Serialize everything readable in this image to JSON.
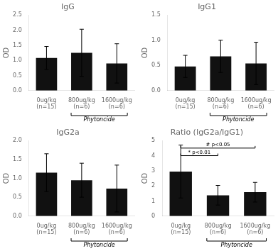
{
  "chart_data": [
    {
      "type": "bar",
      "title": "IgG",
      "ylabel": "OD",
      "categories": [
        "0ug/kg (n=15)",
        "800ug/kg (n=6)",
        "1600ug/kg (n=6)"
      ],
      "values": [
        1.08,
        1.25,
        0.9
      ],
      "errors": [
        0.38,
        0.78,
        0.65
      ],
      "color": "#111111",
      "ylim": [
        0,
        2.5
      ],
      "yticks": [
        {
          "value": 0,
          "label": "0.0"
        },
        {
          "value": 0.5,
          "label": "0.5"
        },
        {
          "value": 1,
          "label": "1.0"
        },
        {
          "value": 1.5,
          "label": "1.5"
        },
        {
          "value": 2,
          "label": "2.0"
        },
        {
          "value": 2.5,
          "label": "2.5"
        }
      ],
      "grid": false,
      "annotations": [
        {
          "text": "Phytoncide",
          "from": "800ug/kg (n=6)",
          "to": "1600ug/kg (n=6)",
          "side": "bottom"
        }
      ]
    },
    {
      "type": "bar",
      "title": "IgG1",
      "ylabel": "OD",
      "categories": [
        "0ug/kg (n=15)",
        "800ug/kg (n=6)",
        "1600ug/kg (n=6)"
      ],
      "values": [
        0.48,
        0.68,
        0.54
      ],
      "errors": [
        0.22,
        0.32,
        0.42
      ],
      "color": "#111111",
      "ylim": [
        0,
        1.5
      ],
      "yticks": [
        {
          "value": 0,
          "label": "0.0"
        },
        {
          "value": 0.5,
          "label": "0.5"
        },
        {
          "value": 1,
          "label": "1.0"
        },
        {
          "value": 1.5,
          "label": "1.5"
        }
      ],
      "grid": false,
      "annotations": [
        {
          "text": "Phytoncide",
          "from": "800ug/kg (n=6)",
          "to": "1600ug/kg (n=6)",
          "side": "bottom"
        }
      ]
    },
    {
      "type": "bar",
      "title": "IgG2a",
      "ylabel": "OD",
      "categories": [
        "0ug/kg (n=15)",
        "800ug/kg (n=6)",
        "1600ug/kg (n=6)"
      ],
      "values": [
        1.15,
        0.95,
        0.73
      ],
      "errors": [
        0.5,
        0.45,
        0.62
      ],
      "color": "#111111",
      "ylim": [
        0,
        2.0
      ],
      "yticks": [
        {
          "value": 0,
          "label": "0.0"
        },
        {
          "value": 0.5,
          "label": "0.5"
        },
        {
          "value": 1,
          "label": "1.0"
        },
        {
          "value": 1.5,
          "label": "1.5"
        },
        {
          "value": 2,
          "label": "2.0"
        }
      ],
      "grid": false,
      "annotations": [
        {
          "text": "Phytoncide",
          "from": "800ug/kg (n=6)",
          "to": "1600ug/kg (n=6)",
          "side": "bottom"
        }
      ]
    },
    {
      "type": "bar",
      "title": "Ratio (IgG2a/IgG1)",
      "ylabel": "OD",
      "categories": [
        "0ug/kg (n=15)",
        "800ug/kg (n=6)",
        "1600ug/kg (n=6)"
      ],
      "values": [
        2.95,
        1.38,
        1.58
      ],
      "errors": [
        1.75,
        0.65,
        0.65
      ],
      "color": "#111111",
      "ylim": [
        0,
        5
      ],
      "yticks": [
        0,
        1,
        2,
        3,
        4,
        5
      ],
      "grid": false,
      "annotations": [
        {
          "text": "* p<0.01",
          "from": "0ug/kg (n=15)",
          "to": "800ug/kg (n=6)",
          "side": "top"
        },
        {
          "text": "# p<0.05",
          "from": "0ug/kg (n=15)",
          "to": "1600ug/kg (n=6)",
          "side": "top"
        },
        {
          "text": "Phytoncide",
          "from": "800ug/kg (n=6)",
          "to": "1600ug/kg (n=6)",
          "side": "bottom"
        }
      ]
    }
  ]
}
